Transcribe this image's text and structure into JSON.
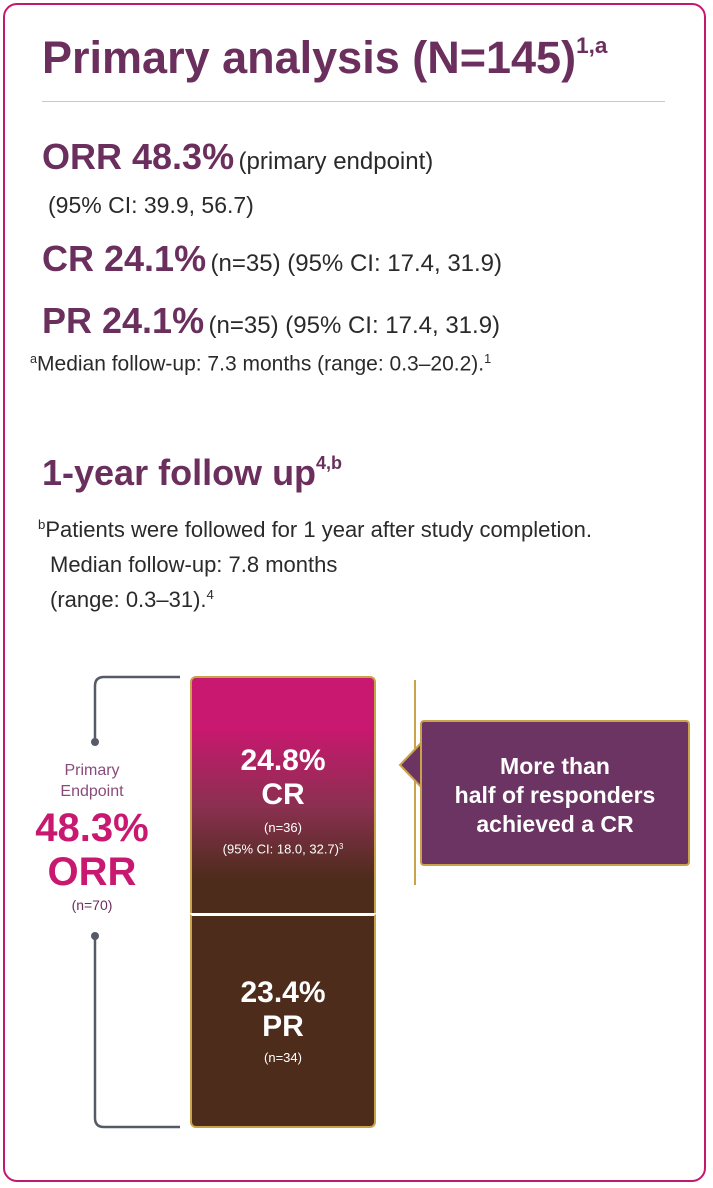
{
  "primary": {
    "title": "Primary analysis (N=145)",
    "title_sup": "1,a",
    "orr": {
      "label": "ORR 48.3%",
      "note": "(primary endpoint)",
      "ci": "(95% CI: 39.9, 56.7)"
    },
    "cr": {
      "label": "CR 24.1%",
      "note": "(n=35) (95% CI: 17.4, 31.9)"
    },
    "pr": {
      "label": "PR 24.1%",
      "note": "(n=35) (95% CI: 17.4, 31.9)"
    },
    "footnote": {
      "mark": "a",
      "text": "Median follow-up: 7.3 months (range: 0.3–20.2).",
      "ref": "1"
    }
  },
  "followup": {
    "title": "1-year follow up",
    "title_sup": "4,b",
    "footnote": {
      "mark": "b",
      "lines": [
        "Patients were followed for 1 year after study completion.",
        "Median follow-up: 7.8 months",
        "(range: 0.3–31)."
      ],
      "ref": "4"
    }
  },
  "graphic": {
    "left": {
      "label": [
        "Primary",
        "Endpoint"
      ],
      "value": "48.3%",
      "name": "ORR",
      "n": "(n=70)"
    },
    "cr": {
      "value": "24.8%",
      "name": "CR",
      "n": "(n=36)",
      "ci": "(95% CI: 18.0, 32.7)",
      "ref": "3"
    },
    "pr": {
      "value": "23.4%",
      "name": "PR",
      "n": "(n=34)"
    },
    "callout": [
      "More than",
      "half of responders",
      "achieved a CR"
    ]
  }
}
